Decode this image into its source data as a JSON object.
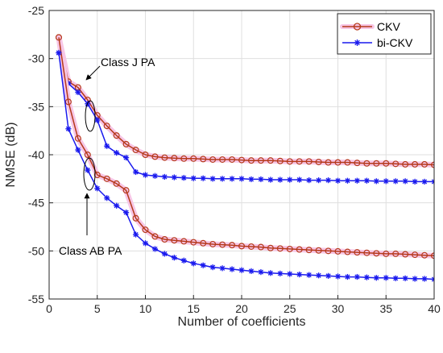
{
  "chart_data": {
    "type": "line",
    "title": "",
    "xlabel": "Number of coefficients",
    "ylabel": "NMSE (dB)",
    "xlim": [
      0,
      40
    ],
    "ylim": [
      -55,
      -25
    ],
    "xticks": [
      0,
      5,
      10,
      15,
      20,
      25,
      30,
      35,
      40
    ],
    "yticks": [
      -25,
      -30,
      -35,
      -40,
      -45,
      -50,
      -55
    ],
    "xtick_labels": [
      "0",
      "5",
      "10",
      "15",
      "20",
      "25",
      "30",
      "35",
      "40"
    ],
    "ytick_labels": [
      "-25",
      "-30",
      "-35",
      "-40",
      "-45",
      "-50",
      "-55"
    ],
    "grid": true,
    "legend_position": "top-right",
    "legend": [
      "CKV",
      "bi-CKV"
    ],
    "colors": {
      "CKV": "#b5391a",
      "bi-CKV": "#1a1aee",
      "CKV_shadow": "#f7c6e6"
    },
    "x": [
      1,
      2,
      3,
      4,
      5,
      6,
      7,
      8,
      9,
      10,
      11,
      12,
      13,
      14,
      15,
      16,
      17,
      18,
      19,
      20,
      21,
      22,
      23,
      24,
      25,
      26,
      27,
      28,
      29,
      30,
      31,
      32,
      33,
      34,
      35,
      36,
      37,
      38,
      39,
      40
    ],
    "series": [
      {
        "name": "CKV",
        "group": "Class J PA",
        "marker": "circle",
        "values": [
          -27.8,
          -32.4,
          -33.0,
          -34.3,
          -35.9,
          -37.0,
          -38.0,
          -38.9,
          -39.5,
          -40.0,
          -40.2,
          -40.3,
          -40.35,
          -40.4,
          -40.4,
          -40.45,
          -40.5,
          -40.5,
          -40.5,
          -40.55,
          -40.6,
          -40.6,
          -40.6,
          -40.65,
          -40.7,
          -40.7,
          -40.7,
          -40.75,
          -40.8,
          -40.8,
          -40.8,
          -40.85,
          -40.9,
          -40.9,
          -40.9,
          -40.95,
          -41.0,
          -41.0,
          -41.0,
          -41.05
        ]
      },
      {
        "name": "bi-CKV",
        "group": "Class J PA",
        "marker": "asterisk",
        "values": [
          -29.4,
          -32.6,
          -33.5,
          -34.7,
          -36.4,
          -39.1,
          -39.8,
          -40.3,
          -41.8,
          -42.1,
          -42.2,
          -42.3,
          -42.35,
          -42.4,
          -42.45,
          -42.45,
          -42.5,
          -42.5,
          -42.5,
          -42.5,
          -42.55,
          -42.55,
          -42.6,
          -42.6,
          -42.6,
          -42.6,
          -42.65,
          -42.65,
          -42.65,
          -42.7,
          -42.7,
          -42.7,
          -42.7,
          -42.75,
          -42.75,
          -42.75,
          -42.75,
          -42.8,
          -42.8,
          -42.8
        ]
      },
      {
        "name": "CKV",
        "group": "Class AB PA",
        "marker": "circle",
        "values": [
          -27.8,
          -34.5,
          -38.3,
          -40.0,
          -42.1,
          -42.5,
          -43.0,
          -43.7,
          -46.6,
          -47.8,
          -48.5,
          -48.8,
          -48.9,
          -49.0,
          -49.1,
          -49.2,
          -49.3,
          -49.35,
          -49.4,
          -49.5,
          -49.55,
          -49.6,
          -49.7,
          -49.75,
          -49.8,
          -49.85,
          -49.9,
          -49.95,
          -50.0,
          -50.05,
          -50.1,
          -50.15,
          -50.2,
          -50.25,
          -50.3,
          -50.3,
          -50.35,
          -50.4,
          -50.45,
          -50.5
        ]
      },
      {
        "name": "bi-CKV",
        "group": "Class AB PA",
        "marker": "asterisk",
        "values": [
          -29.4,
          -37.3,
          -39.5,
          -41.6,
          -43.5,
          -44.5,
          -45.3,
          -46.0,
          -48.3,
          -49.2,
          -49.8,
          -50.3,
          -50.7,
          -51.0,
          -51.3,
          -51.5,
          -51.7,
          -51.8,
          -51.9,
          -52.0,
          -52.1,
          -52.2,
          -52.3,
          -52.35,
          -52.4,
          -52.45,
          -52.5,
          -52.55,
          -52.6,
          -52.65,
          -52.7,
          -52.7,
          -52.75,
          -52.8,
          -52.8,
          -52.85,
          -52.85,
          -52.9,
          -52.9,
          -52.95
        ]
      }
    ],
    "annotations": [
      {
        "text": "Class J PA",
        "points_to": [
          3.5,
          -34.0
        ]
      },
      {
        "text": "Class AB PA",
        "points_to": [
          4.0,
          -41.0
        ]
      }
    ]
  }
}
